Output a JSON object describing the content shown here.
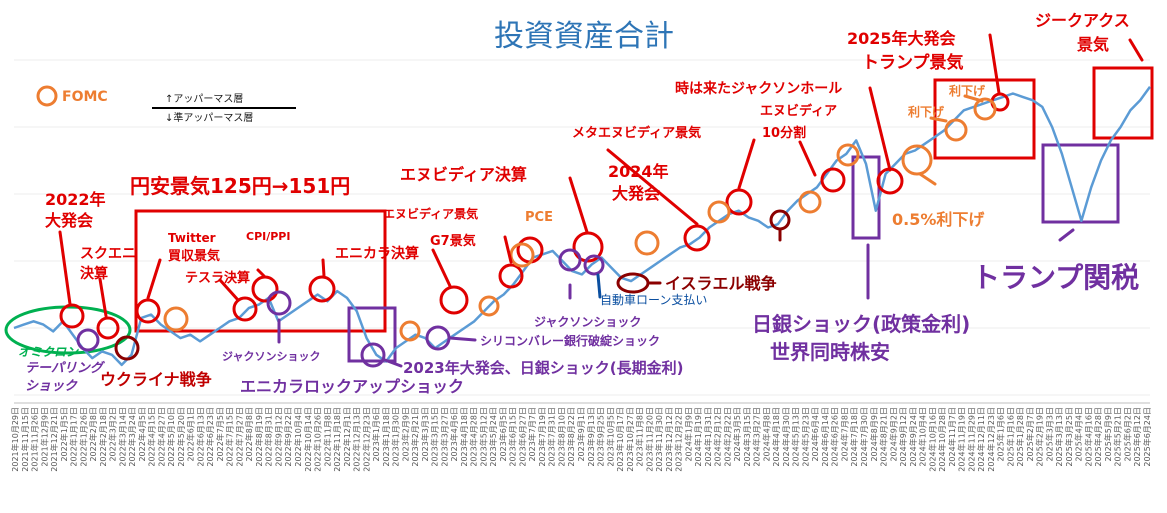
{
  "colors": {
    "line": "#5b9bd5",
    "red": "#e00000",
    "purple": "#7030a0",
    "orange": "#ed7d31",
    "green": "#00b050",
    "darkred": "#8b0000",
    "title": "#2e75b6"
  },
  "chart_data": {
    "type": "line",
    "title": "投資資産合計",
    "xlabel": "",
    "ylabel": "",
    "x_tick_labels": [
      "2021年10月29日",
      "2021年11月15日",
      "2021年11月26日",
      "2021年12月9日",
      "2021年12月21日",
      "2022年1月5日",
      "2022年1月17日",
      "2022年1月26日",
      "2022年2月8日",
      "2022年2月18日",
      "2022年3月2日",
      "2022年3月14日",
      "2022年3月24日",
      "2022年4月5日",
      "2022年4月15日",
      "2022年4月27日",
      "2022年5月10日",
      "2022年5月20日",
      "2022年6月1日",
      "2022年6月13日",
      "2022年6月23日",
      "2022年7月5日",
      "2022年7月15日",
      "2022年7月27日",
      "2022年8月8日",
      "2022年8月19日",
      "2022年8月31日",
      "2022年9月12日",
      "2022年9月22日",
      "2022年10月4日",
      "2022年10月14日",
      "2022年10月26日",
      "2022年11月8日",
      "2022年11月18日",
      "2022年12月1日",
      "2022年12月13日",
      "2022年12月23日",
      "2023年1月6日",
      "2023年1月18日",
      "2023年1月30日",
      "2023年2月9日",
      "2023年2月21日",
      "2023年3月3日",
      "2023年3月15日",
      "2023年3月27日",
      "2023年4月6日",
      "2023年4月18日",
      "2023年4月28日",
      "2023年5月12日",
      "2023年5月24日",
      "2023年6月5日",
      "2023年6月15日",
      "2023年6月27日",
      "2023年7月7日",
      "2023年7月19日",
      "2023年7月31日",
      "2023年8月10日",
      "2023年8月22日",
      "2023年9月1日",
      "2023年9月13日",
      "2023年9月25日",
      "2023年10月5日",
      "2023年10月17日",
      "2023年10月27日",
      "2023年11月8日",
      "2023年11月20日",
      "2023年11月30日",
      "2023年12月12日",
      "2023年12月22日",
      "2024年1月9日",
      "2024年1月19日",
      "2024年1月31日",
      "2024年2月12日",
      "2024年2月22日",
      "2024年3月5日",
      "2024年3月15日",
      "2024年3月27日",
      "2024年4月8日",
      "2024年4月18日",
      "2024年4月30日",
      "2024年5月13日",
      "2024年5月23日",
      "2024年6月4日",
      "2024年6月14日",
      "2024年6月26日",
      "2024年7月8日",
      "2024年7月18日",
      "2024年7月30日",
      "2024年8月9日",
      "2024年8月21日",
      "2024年9月2日",
      "2024年9月12日",
      "2024年9月24日",
      "2024年10月4日",
      "2024年10月16日",
      "2024年10月28日",
      "2024年11月7日",
      "2024年11月19日",
      "2024年11月29日",
      "2024年12月11日",
      "2024年12月23日",
      "2025年1月6日",
      "2025年1月16日",
      "2025年1月28日",
      "2025年2月7日",
      "2025年2月19日",
      "2025年3月3日",
      "2025年3月13日",
      "2025年3月25日",
      "2025年4月4日",
      "2025年4月16日",
      "2025年4月28日",
      "2025年5月9日",
      "2025年5月21日",
      "2025年6月2日",
      "2025年6月12日",
      "2025年6月24日"
    ],
    "series": [
      {
        "values": [
          0.2,
          0.21,
          0.22,
          0.21,
          0.19,
          0.22,
          0.18,
          0.14,
          0.11,
          0.13,
          0.12,
          0.09,
          0.12,
          0.23,
          0.24,
          0.21,
          0.19,
          0.17,
          0.18,
          0.16,
          0.18,
          0.2,
          0.22,
          0.23,
          0.26,
          0.27,
          0.29,
          0.22,
          0.24,
          0.26,
          0.28,
          0.3,
          0.28,
          0.31,
          0.29,
          0.25,
          0.17,
          0.12,
          0.1,
          0.14,
          0.16,
          0.18,
          0.17,
          0.14,
          0.16,
          0.18,
          0.2,
          0.22,
          0.25,
          0.28,
          0.3,
          0.33,
          0.37,
          0.41,
          0.42,
          0.43,
          0.4,
          0.37,
          0.36,
          0.39,
          0.41,
          0.38,
          0.35,
          0.34,
          0.36,
          0.38,
          0.4,
          0.42,
          0.44,
          0.45,
          0.47,
          0.5,
          0.52,
          0.54,
          0.55,
          0.53,
          0.52,
          0.5,
          0.51,
          0.55,
          0.58,
          0.6,
          0.62,
          0.66,
          0.7,
          0.72,
          0.76,
          0.69,
          0.55,
          0.66,
          0.69,
          0.72,
          0.73,
          0.75,
          0.77,
          0.79,
          0.82,
          0.85,
          0.86,
          0.87,
          0.88,
          0.89,
          0.9,
          0.89,
          0.88,
          0.86,
          0.8,
          0.72,
          0.62,
          0.52,
          0.62,
          0.7,
          0.76,
          0.8,
          0.85,
          0.88,
          0.92
        ]
      }
    ],
    "legend": {
      "fomc": "FOMC",
      "upper": "↑アッパーマス層",
      "lower": "↓準アッパーマス層"
    },
    "annotations": {
      "a1": "2022年",
      "a2": "大発会",
      "a3": "スクエニ",
      "a4": "決算",
      "a5": "オミクロン",
      "a6": "テーパリング",
      "a7": "ショック",
      "a8": "ウクライナ戦争",
      "a9": "円安景気125円→151円",
      "a10": "Twitter",
      "a11": "買収景気",
      "a12": "テスラ決算",
      "a13": "CPI/PPI",
      "a14": "ジャクソンショック",
      "a15": "エニカラ決算",
      "a16": "エニカラロックアップショック",
      "a17": "2023年大発会、日銀ショック(長期金利)",
      "a18": "シリコンバレー銀行破綻ショック",
      "a19": "G7景気",
      "a20": "エヌビディア景気",
      "a21": "PCE",
      "a22": "エヌビディア決算",
      "a23": "ジャクソンショック",
      "a24": "自動車ローン支払い",
      "a25": "イスラエル戦争",
      "a26": "2024年",
      "a27": "大発会",
      "a28": "メタエヌビディア景気",
      "a29": "エヌビディア",
      "a30": "10分割",
      "a31": "時は来たジャクソンホール",
      "a32": "日銀ショック(政策金利)",
      "a33": "世界同時株安",
      "a34": "0.5%利下げ",
      "a35": "2025年大発会",
      "a36": "トランプ景気",
      "a37": "利下げ",
      "a38": "利下げ",
      "a39": "ジークアクス",
      "a40": "景気",
      "a41": "トランプ関税"
    }
  }
}
